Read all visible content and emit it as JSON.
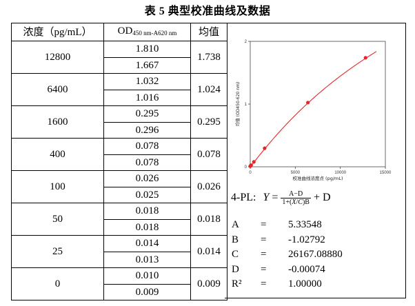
{
  "title": "表 5  典型校准曲线及数据",
  "table": {
    "headers": {
      "concentration": "浓度（pg/mL）",
      "od_main": "OD",
      "od_sub": "450 nm-A620 nm",
      "average": "均值"
    },
    "groups": [
      {
        "concentration": "12800",
        "od": [
          "1.810",
          "1.667"
        ],
        "average": "1.738"
      },
      {
        "concentration": "6400",
        "od": [
          "1.032",
          "1.016"
        ],
        "average": "1.024"
      },
      {
        "concentration": "1600",
        "od": [
          "0.295",
          "0.296"
        ],
        "average": "0.295"
      },
      {
        "concentration": "400",
        "od": [
          "0.078",
          "0.078"
        ],
        "average": "0.078"
      },
      {
        "concentration": "100",
        "od": [
          "0.026",
          "0.025"
        ],
        "average": "0.026"
      },
      {
        "concentration": "50",
        "od": [
          "0.018",
          "0.018"
        ],
        "average": "0.018"
      },
      {
        "concentration": "25",
        "od": [
          "0.014",
          "0.013"
        ],
        "average": "0.014"
      },
      {
        "concentration": "0",
        "od": [
          "0.010",
          "0.009"
        ],
        "average": "0.009"
      }
    ]
  },
  "chart_data": {
    "type": "scatter",
    "xlabel": "校准曲线浓度点 (pg/mL)",
    "ylabel": "均值 (OD450-620 nm)",
    "xlim": [
      0,
      15000
    ],
    "ylim": [
      0,
      2
    ],
    "xticks": [
      "0",
      "5000",
      "10000",
      "15000"
    ],
    "yticks": [
      "0",
      "1",
      "2"
    ],
    "points": [
      {
        "x": 0,
        "y": 0.009
      },
      {
        "x": 25,
        "y": 0.014
      },
      {
        "x": 50,
        "y": 0.018
      },
      {
        "x": 100,
        "y": 0.026
      },
      {
        "x": 400,
        "y": 0.078
      },
      {
        "x": 1600,
        "y": 0.295
      },
      {
        "x": 6400,
        "y": 1.024
      },
      {
        "x": 12800,
        "y": 1.738
      }
    ],
    "fit": {
      "model": "4-PL",
      "A": 5.33548,
      "B": -1.02792,
      "C": 26167.0888,
      "D": -0.00074
    },
    "marker_color": "#e3262a",
    "line_color": "#e3262a"
  },
  "formula": {
    "prefix": "4-PL:",
    "y": "Y",
    "eq": "=",
    "num": "A−D",
    "den_a": "1+(",
    "den_x": "X",
    "den_c": "C",
    "den_b": ")B",
    "suffix": "+ D"
  },
  "params": [
    {
      "name": "A",
      "eq": "=",
      "value": "5.33548"
    },
    {
      "name": "B",
      "eq": "=",
      "value": "-1.02792"
    },
    {
      "name": "C",
      "eq": "=",
      "value": "26167.08880"
    },
    {
      "name": "D",
      "eq": "=",
      "value": "-0.00074"
    },
    {
      "name": "R²",
      "eq": "=",
      "value": "1.00000"
    }
  ]
}
